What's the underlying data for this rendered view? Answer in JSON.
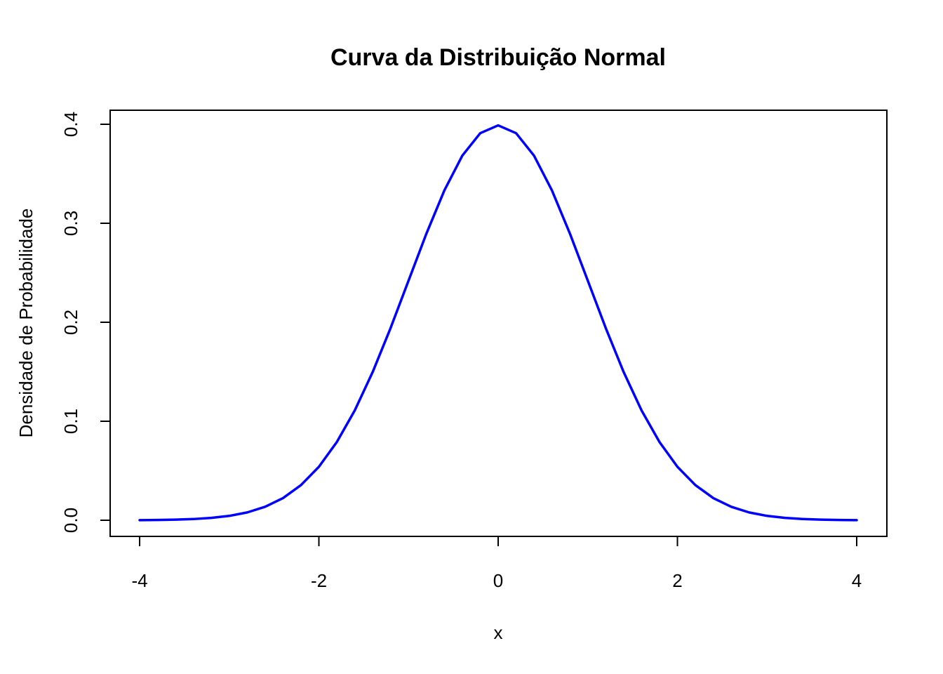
{
  "chart_data": {
    "type": "line",
    "title": "Curva da Distribuição Normal",
    "xlabel": "x",
    "ylabel": "Densidade de Probabilidade",
    "xlim": [
      -4,
      4
    ],
    "ylim": [
      0,
      0.4
    ],
    "x_ticks": [
      "-4",
      "-2",
      "0",
      "2",
      "4"
    ],
    "y_ticks": [
      "0.0",
      "0.1",
      "0.2",
      "0.3",
      "0.4"
    ],
    "grid": false,
    "series": [
      {
        "color": "#0000ff",
        "x": [
          -4.0,
          -3.8,
          -3.6,
          -3.4,
          -3.2,
          -3.0,
          -2.8,
          -2.6,
          -2.4,
          -2.2,
          -2.0,
          -1.8,
          -1.6,
          -1.4,
          -1.2,
          -1.0,
          -0.8,
          -0.6,
          -0.4,
          -0.2,
          0.0,
          0.2,
          0.4,
          0.6,
          0.8,
          1.0,
          1.2,
          1.4,
          1.6,
          1.8,
          2.0,
          2.2,
          2.4,
          2.6,
          2.8,
          3.0,
          3.2,
          3.4,
          3.6,
          3.8,
          4.0
        ],
        "values": [
          0.0001,
          0.0003,
          0.0006,
          0.0012,
          0.0024,
          0.0044,
          0.0079,
          0.0136,
          0.0224,
          0.0355,
          0.054,
          0.079,
          0.1109,
          0.1497,
          0.1942,
          0.242,
          0.2897,
          0.3332,
          0.3683,
          0.391,
          0.3989,
          0.391,
          0.3683,
          0.3332,
          0.2897,
          0.242,
          0.1942,
          0.1497,
          0.1109,
          0.079,
          0.054,
          0.0355,
          0.0224,
          0.0136,
          0.0079,
          0.0044,
          0.0024,
          0.0012,
          0.0006,
          0.0003,
          0.0001
        ]
      }
    ]
  }
}
